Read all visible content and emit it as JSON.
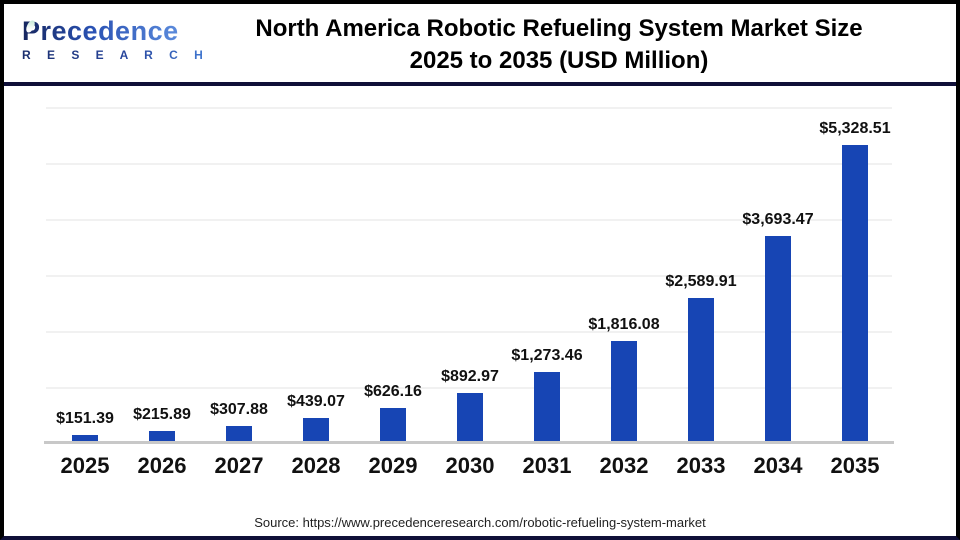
{
  "header": {
    "logo_brand": "Precedence",
    "logo_sub": "R E S E A R C H",
    "title_line1": "North America Robotic Refueling System Market Size",
    "title_line2": "2025 to 2035 (USD Million)"
  },
  "chart_data": {
    "type": "bar",
    "title": "North America Robotic Refueling System Market Size 2025 to 2035 (USD Million)",
    "xlabel": "",
    "ylabel": "",
    "unit": "USD Million",
    "categories": [
      "2025",
      "2026",
      "2027",
      "2028",
      "2029",
      "2030",
      "2031",
      "2032",
      "2033",
      "2034",
      "2035"
    ],
    "values": [
      151.39,
      215.89,
      307.88,
      439.07,
      626.16,
      892.97,
      1273.46,
      1816.08,
      2589.91,
      3693.47,
      5328.51
    ],
    "value_labels": [
      "$151.39",
      "$215.89",
      "$307.88",
      "$439.07",
      "$626.16",
      "$892.97",
      "$1,273.46",
      "$1,816.08",
      "$2,589.91",
      "$3,693.47",
      "$5,328.51"
    ],
    "ylim": [
      0,
      6000
    ],
    "gridline_interval": 1000,
    "grid": true,
    "legend": false,
    "bar_color": "#1745b4",
    "gridline_color": "#f1f1f1",
    "axis_line_color": "#c8c8c8"
  },
  "footer": {
    "source": "Source: https://www.precedenceresearch.com/robotic-refueling-system-market"
  },
  "colors": {
    "accent_bar": "#1745b4",
    "divider_navy": "#0f0f38",
    "frame_black": "#000000",
    "logo_blue_dark": "#16265e",
    "logo_blue_light": "#5b8bdc"
  }
}
